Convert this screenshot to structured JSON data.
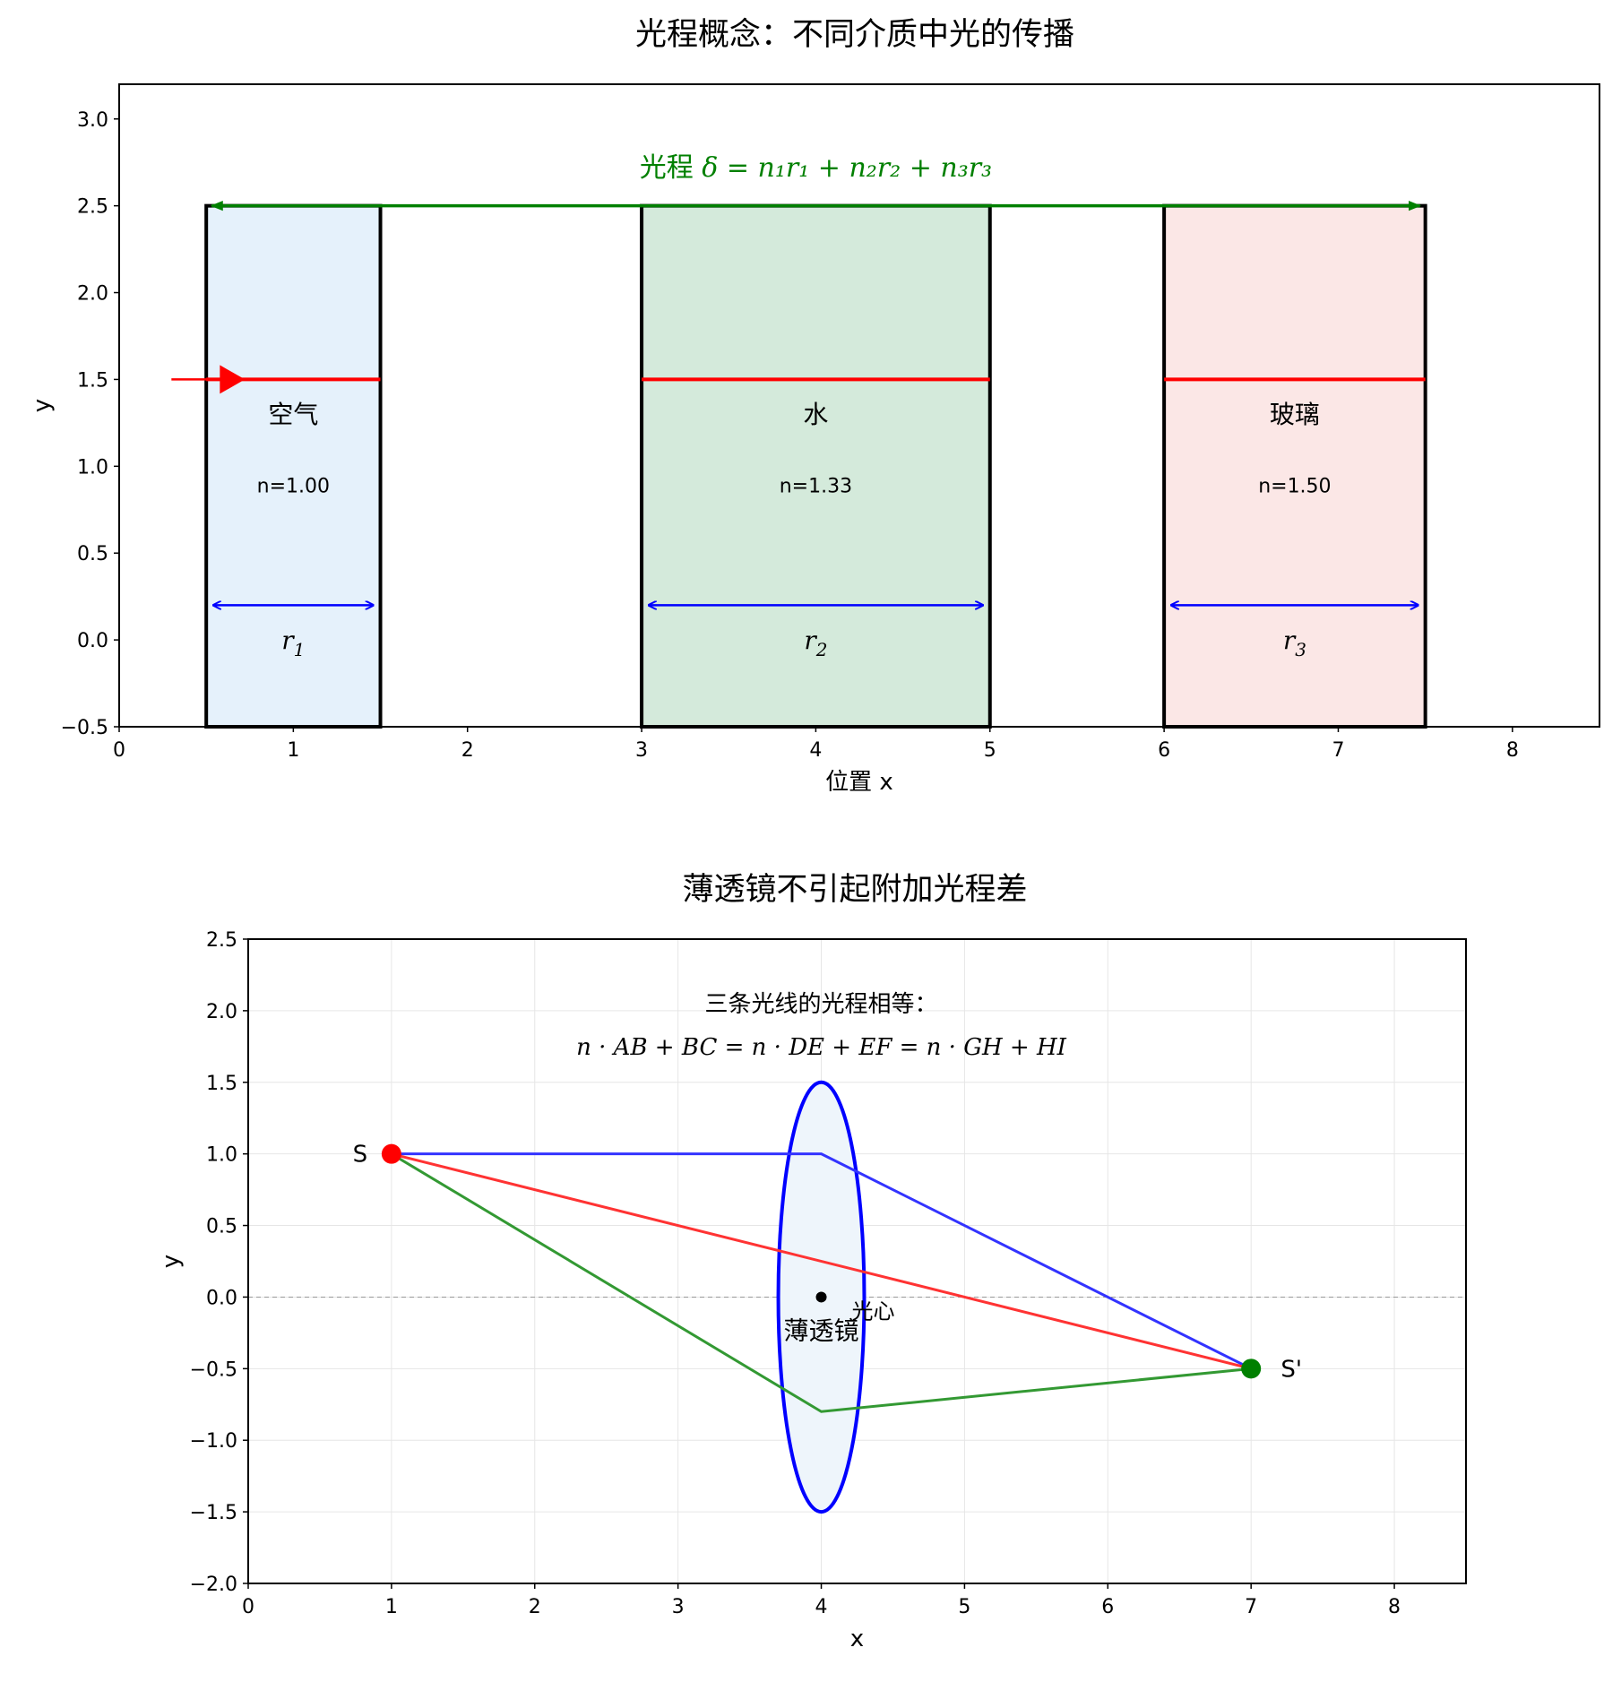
{
  "panel1": {
    "title": "光程概念：不同介质中光的传播",
    "xlabel": "位置 x",
    "ylabel": "y",
    "xlim": [
      0,
      8.5
    ],
    "ylim": [
      -0.5,
      3.2
    ],
    "xticks": [
      0,
      1,
      2,
      3,
      4,
      5,
      6,
      7,
      8
    ],
    "yticks": [
      -0.5,
      0.0,
      0.5,
      1.0,
      1.5,
      2.0,
      2.5,
      3.0
    ],
    "ytick_labels": [
      "−0.5",
      "0.0",
      "0.5",
      "1.0",
      "1.5",
      "2.0",
      "2.5",
      "3.0"
    ],
    "media": [
      {
        "name": "空气",
        "n_label": "n=1.00",
        "x0": 0.5,
        "x1": 1.5,
        "color": "#e5f1fb",
        "r_sym": "r",
        "r_sub": "1"
      },
      {
        "name": "水",
        "n_label": "n=1.33",
        "x0": 3.0,
        "x1": 5.0,
        "color": "#d4eadb",
        "r_sym": "r",
        "r_sub": "2"
      },
      {
        "name": "玻璃",
        "n_label": "n=1.50",
        "x0": 6.0,
        "x1": 7.5,
        "color": "#fbe7e6",
        "r_sym": "r",
        "r_sub": "3"
      }
    ],
    "y_range": [
      -0.5,
      2.5
    ],
    "ray_y": 1.5,
    "incident_ray": [
      0.3,
      0.65
    ],
    "ray_color": "#ff0000",
    "name_y": 1.25,
    "n_y": 0.85,
    "dim_arrow_y": 0.2,
    "r_label_y": -0.05,
    "path_arrow": {
      "x0": 0.5,
      "x1": 7.5,
      "y": 2.5,
      "color": "#008000"
    },
    "path_label": {
      "prefix": "光程 ",
      "formula": "δ = n₁r₁ + n₂r₂ + n₃r₃",
      "x": 4.0,
      "y": 2.72,
      "color": "#008000"
    }
  },
  "panel2": {
    "title": "薄透镜不引起附加光程差",
    "xlabel": "x",
    "ylabel": "y",
    "xlim": [
      0,
      8.5
    ],
    "ylim": [
      -2.0,
      2.5
    ],
    "xticks": [
      0,
      1,
      2,
      3,
      4,
      5,
      6,
      7,
      8
    ],
    "yticks": [
      -2.0,
      -1.5,
      -1.0,
      -0.5,
      0.0,
      0.5,
      1.0,
      1.5,
      2.0,
      2.5
    ],
    "ytick_labels": [
      "−2.0",
      "−1.5",
      "−1.0",
      "−0.5",
      "0.0",
      "0.5",
      "1.0",
      "1.5",
      "2.0",
      "2.5"
    ],
    "source": {
      "label": "S",
      "x": 1.0,
      "y": 1.0,
      "color": "#ff0000"
    },
    "image": {
      "label": "S'",
      "x": 7.0,
      "y": -0.5,
      "color": "#008000"
    },
    "lens": {
      "label": "薄透镜",
      "cx": 4.0,
      "cy": 0.0,
      "half_width": 0.3,
      "half_height": 1.5,
      "color": "#0000ff",
      "fill": "#eef5fb"
    },
    "center": {
      "label": "光心",
      "x": 4.0,
      "y": 0.0
    },
    "rays": [
      {
        "color": "#3333ff",
        "points": [
          [
            1.0,
            1.0
          ],
          [
            4.0,
            1.0
          ],
          [
            7.0,
            -0.5
          ]
        ]
      },
      {
        "color": "#ff3333",
        "points": [
          [
            1.0,
            1.0
          ],
          [
            7.0,
            -0.5
          ]
        ]
      },
      {
        "color": "#339933",
        "points": [
          [
            1.0,
            1.0
          ],
          [
            4.0,
            -0.8
          ],
          [
            7.0,
            -0.5
          ]
        ]
      }
    ],
    "note_line1": "三条光线的光程相等：",
    "note_line2": "n · AB + BC = n · DE + EF = n · GH + HI",
    "note_x": 4.0,
    "note_y1": 2.05,
    "note_y2": 1.75
  }
}
